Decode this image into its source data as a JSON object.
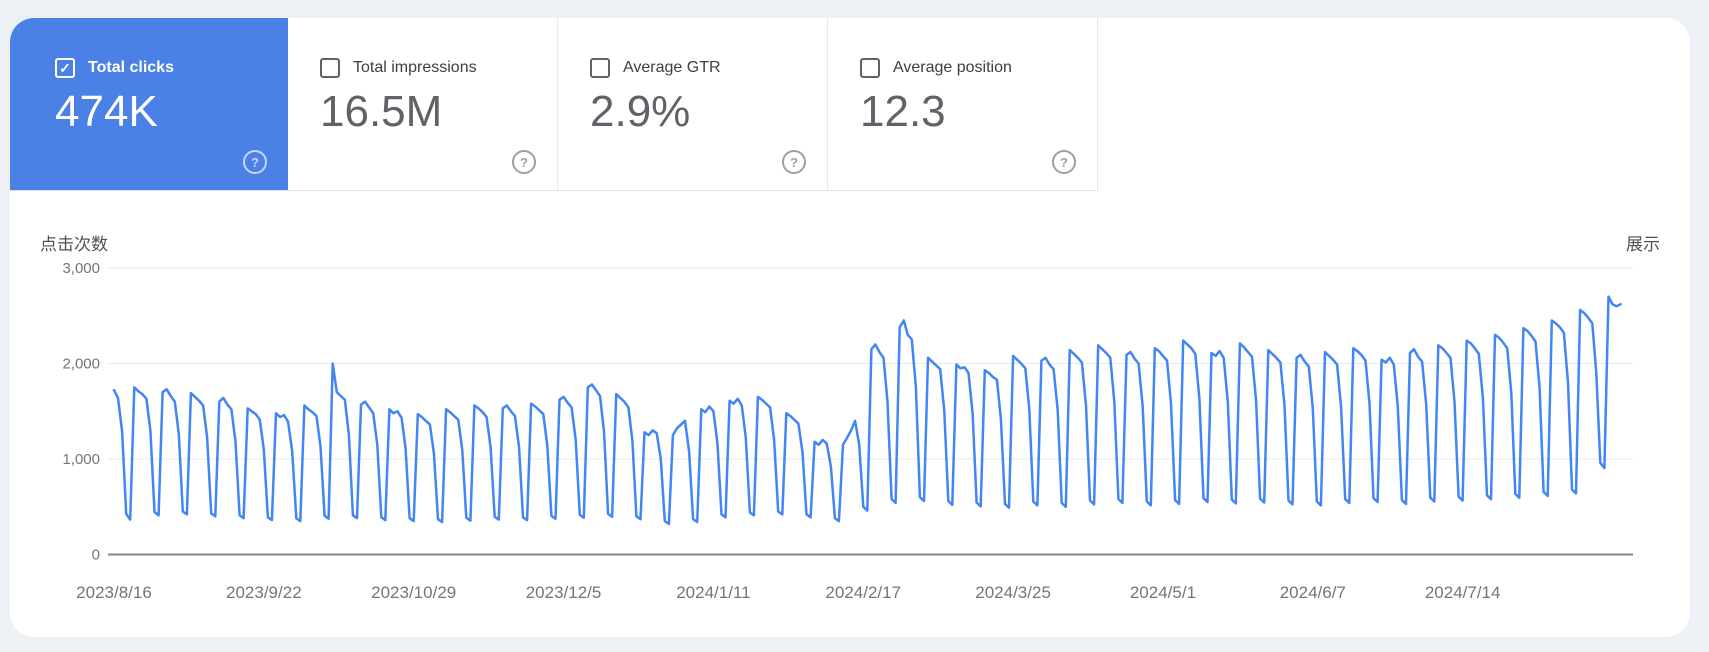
{
  "metric_cards": [
    {
      "label": "Total clicks",
      "value": "474K",
      "checked": true,
      "selected": true,
      "accent_color": "#4b80e7"
    },
    {
      "label": "Total impressions",
      "value": "16.5M",
      "checked": false,
      "selected": false
    },
    {
      "label": "Average GTR",
      "value": "2.9%",
      "checked": false,
      "selected": false
    },
    {
      "label": "Average position",
      "value": "12.3",
      "checked": false,
      "selected": false
    }
  ],
  "help_icon_glyph": "?",
  "check_icon_glyph": "✓",
  "chart": {
    "left_axis_title": "点击次数",
    "right_axis_title": "展示",
    "y_ticks": [
      "3,000",
      "2,000",
      "1,000",
      "0"
    ],
    "x_ticks": [
      "2023/8/16",
      "2023/9/22",
      "2023/10/29",
      "2023/12/5",
      "2024/1/11",
      "2024/2/17",
      "2024/3/25",
      "2024/5/1",
      "2024/6/7",
      "2024/7/14"
    ]
  },
  "chart_data": {
    "type": "line",
    "title": "点击次数 (Total clicks per day)",
    "xlabel": "",
    "ylabel": "点击次数",
    "ylim": [
      0,
      3000
    ],
    "grid": true,
    "legend_position": "none",
    "x_start_date": "2023/8/16",
    "x_frequency": "daily",
    "x_tick_interval_days": 37,
    "line_color": "#4285f4",
    "series": [
      {
        "name": "点击次数",
        "values": [
          1720,
          1640,
          1290,
          425,
          365,
          1750,
          1710,
          1680,
          1630,
          1300,
          445,
          410,
          1700,
          1730,
          1660,
          1600,
          1260,
          450,
          420,
          1690,
          1650,
          1610,
          1560,
          1230,
          430,
          400,
          1600,
          1640,
          1570,
          1520,
          1180,
          410,
          380,
          1530,
          1500,
          1470,
          1410,
          1100,
          390,
          360,
          1480,
          1440,
          1460,
          1390,
          1080,
          380,
          350,
          1560,
          1520,
          1490,
          1450,
          1130,
          405,
          375,
          2000,
          1700,
          1660,
          1620,
          1250,
          410,
          380,
          1570,
          1600,
          1540,
          1480,
          1150,
          390,
          360,
          1520,
          1480,
          1500,
          1430,
          1110,
          380,
          350,
          1470,
          1440,
          1400,
          1360,
          1060,
          370,
          340,
          1520,
          1490,
          1450,
          1410,
          1090,
          385,
          355,
          1560,
          1530,
          1490,
          1440,
          1120,
          395,
          365,
          1530,
          1560,
          1500,
          1450,
          1130,
          390,
          360,
          1580,
          1550,
          1510,
          1470,
          1140,
          405,
          375,
          1620,
          1650,
          1590,
          1540,
          1200,
          415,
          385,
          1750,
          1780,
          1720,
          1660,
          1290,
          425,
          395,
          1680,
          1640,
          1600,
          1540,
          1190,
          400,
          370,
          1280,
          1250,
          1300,
          1270,
          1000,
          350,
          320,
          1250,
          1320,
          1360,
          1400,
          1080,
          370,
          340,
          1520,
          1490,
          1550,
          1500,
          1170,
          420,
          390,
          1610,
          1580,
          1630,
          1560,
          1220,
          440,
          410,
          1650,
          1620,
          1580,
          1540,
          1200,
          450,
          420,
          1480,
          1450,
          1410,
          1370,
          1070,
          420,
          390,
          1180,
          1150,
          1200,
          1160,
          920,
          380,
          350,
          1150,
          1220,
          1300,
          1400,
          1150,
          500,
          460,
          2150,
          2200,
          2120,
          2060,
          1600,
          580,
          540,
          2380,
          2450,
          2300,
          2250,
          1750,
          600,
          560,
          2060,
          2020,
          1980,
          1940,
          1500,
          560,
          520,
          1990,
          1950,
          1960,
          1900,
          1480,
          545,
          505,
          1930,
          1900,
          1860,
          1830,
          1420,
          530,
          490,
          2080,
          2040,
          2000,
          1950,
          1520,
          555,
          515,
          2030,
          2060,
          1990,
          1940,
          1510,
          540,
          500,
          2140,
          2100,
          2060,
          2010,
          1560,
          565,
          525,
          2190,
          2150,
          2110,
          2060,
          1600,
          580,
          540,
          2090,
          2120,
          2050,
          2000,
          1550,
          555,
          515,
          2160,
          2130,
          2080,
          2030,
          1580,
          570,
          530,
          2240,
          2200,
          2160,
          2100,
          1630,
          590,
          550,
          2110,
          2080,
          2130,
          2060,
          1600,
          575,
          535,
          2210,
          2170,
          2120,
          2070,
          1610,
          585,
          545,
          2140,
          2100,
          2060,
          2010,
          1560,
          565,
          525,
          2060,
          2090,
          2020,
          1970,
          1530,
          555,
          515,
          2120,
          2080,
          2040,
          1990,
          1540,
          580,
          540,
          2160,
          2130,
          2090,
          2030,
          1580,
          590,
          550,
          2040,
          2010,
          2060,
          1990,
          1550,
          570,
          530,
          2110,
          2150,
          2070,
          2020,
          1570,
          595,
          555,
          2190,
          2160,
          2110,
          2060,
          1600,
          605,
          565,
          2240,
          2210,
          2160,
          2100,
          1640,
          620,
          580,
          2300,
          2270,
          2220,
          2160,
          1690,
          635,
          595,
          2370,
          2340,
          2290,
          2230,
          1740,
          655,
          615,
          2450,
          2420,
          2380,
          2320,
          1800,
          680,
          640,
          2560,
          2530,
          2480,
          2420,
          1900,
          960,
          905,
          2700,
          2620,
          2600,
          2620
        ]
      }
    ]
  }
}
